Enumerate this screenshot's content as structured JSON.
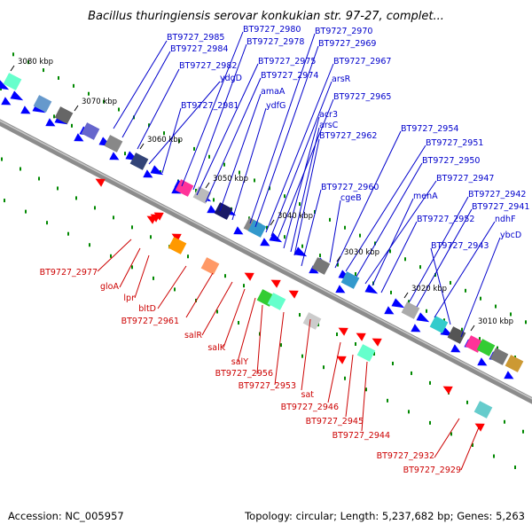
{
  "title": "Bacillus thuringiensis serovar konkukian str. 97-27, complet...",
  "footer": {
    "accession": "Accession: NC_005957",
    "topology": "Topology: circular; Length: 5,237,682 bp; Genes: 5,263"
  },
  "colors": {
    "backbone": "#8c8c8c",
    "forward_gene": "#0000ff",
    "reverse_gene": "#ff0000",
    "top_label": "#0000cc",
    "bottom_label": "#cc0000",
    "tick": "#008800"
  },
  "kbp_ticks": [
    "3080 kbp",
    "3070 kbp",
    "3060 kbp",
    "3050 kbp",
    "3040 kbp",
    "3030 kbp",
    "3020 kbp",
    "3010 kbp"
  ],
  "top_labels": [
    "BT9727_2985",
    "BT9727_2984",
    "BT9727_2982",
    "ydgD",
    "BT9727_2981",
    "BT9727_2980",
    "BT9727_2978",
    "BT9727_2975",
    "BT9727_2974",
    "amaA",
    "ydfG",
    "BT9727_2970",
    "BT9727_2969",
    "BT9727_2967",
    "arsR",
    "BT9727_2965",
    "acr3",
    "arsC",
    "BT9727_2962",
    "BT9727_2960",
    "cgeB",
    "BT9727_2954",
    "BT9727_2951",
    "BT9727_2950",
    "BT9727_2947",
    "menA",
    "BT9727_2952",
    "BT9727_2942",
    "BT9727_2941",
    "ndhF",
    "ybcD",
    "BT9727_2943"
  ],
  "bottom_labels": [
    "BT9727_2977",
    "gloA",
    "lpr",
    "bltD",
    "BT9727_2961",
    "salR",
    "salK",
    "salY",
    "BT9727_2956",
    "BT9727_2953",
    "sat",
    "BT9727_2946",
    "BT9727_2945",
    "BT9727_2944",
    "BT9727_2932",
    "BT9727_2929"
  ]
}
